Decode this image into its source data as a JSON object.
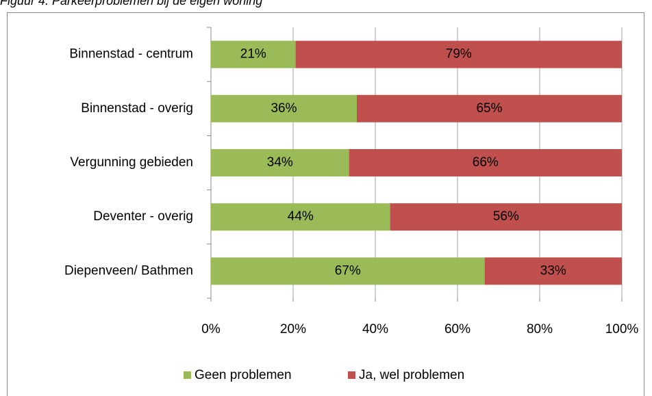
{
  "chart_data": {
    "type": "bar_stacked_horizontal",
    "title": "Figuur 4. Parkeerproblemen bij de eigen woning",
    "categories": [
      "Binnenstad - centrum",
      "Binnenstad - overig",
      "Vergunning gebieden",
      "Deventer - overig",
      "Diepenveen/ Bathmen"
    ],
    "series": [
      {
        "name": "Geen problemen",
        "color": "#9bbb59",
        "values": [
          20.6,
          35.5,
          33.6,
          43.6,
          66.6
        ],
        "value_labels": [
          "21%",
          "36%",
          "34%",
          "44%",
          "67%"
        ]
      },
      {
        "name": "Ja, wel problemen",
        "color": "#c0504d",
        "values": [
          79.4,
          64.5,
          66.4,
          56.4,
          33.4
        ],
        "value_labels": [
          "79%",
          "65%",
          "66%",
          "56%",
          "33%"
        ]
      }
    ],
    "xlim": [
      0,
      100
    ],
    "xticks": [
      {
        "value": 0,
        "label": "0%"
      },
      {
        "value": 20,
        "label": "20%"
      },
      {
        "value": 40,
        "label": "40%"
      },
      {
        "value": 60,
        "label": "60%"
      },
      {
        "value": 80,
        "label": "80%"
      },
      {
        "value": 100,
        "label": "100%"
      }
    ],
    "grid": true,
    "legend": "bottom"
  }
}
